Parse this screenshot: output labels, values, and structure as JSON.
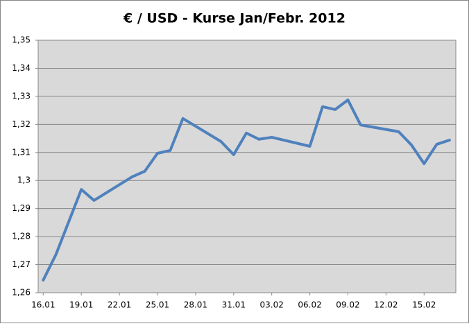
{
  "chart_data": {
    "type": "line",
    "title": "€ / USD - Kurse  Jan/Febr. 2012",
    "x": [
      0,
      1,
      3,
      4,
      7,
      8,
      9,
      10,
      11,
      14,
      15,
      16,
      17,
      18,
      21,
      22,
      23,
      24,
      25,
      28,
      29,
      30,
      31,
      32
    ],
    "series": [
      {
        "color": "#4f81bd",
        "values": [
          1.2645,
          1.2736,
          1.2968,
          1.2929,
          1.3013,
          1.3033,
          1.3097,
          1.3107,
          1.3221,
          1.3139,
          1.3092,
          1.3169,
          1.3147,
          1.3154,
          1.3122,
          1.3263,
          1.3253,
          1.3287,
          1.3198,
          1.3174,
          1.3127,
          1.306,
          1.3129,
          1.3144
        ]
      }
    ],
    "xlim": [
      -0.4,
      32.5
    ],
    "xticks": [
      {
        "value": 0,
        "label": "16.01"
      },
      {
        "value": 3,
        "label": "19.01"
      },
      {
        "value": 6,
        "label": "22.01"
      },
      {
        "value": 9,
        "label": "25.01"
      },
      {
        "value": 12,
        "label": "28.01"
      },
      {
        "value": 15,
        "label": "31.01"
      },
      {
        "value": 18,
        "label": "03.02"
      },
      {
        "value": 21,
        "label": "06.02"
      },
      {
        "value": 24,
        "label": "09.02"
      },
      {
        "value": 27,
        "label": "12.02"
      },
      {
        "value": 30,
        "label": "15.02"
      }
    ],
    "ylim": [
      1.26,
      1.35
    ],
    "yticks": [
      {
        "value": 1.26,
        "label": "1,26"
      },
      {
        "value": 1.27,
        "label": "1,27"
      },
      {
        "value": 1.28,
        "label": "1,28"
      },
      {
        "value": 1.29,
        "label": "1,29"
      },
      {
        "value": 1.3,
        "label": "1,3"
      },
      {
        "value": 1.31,
        "label": "1,31"
      },
      {
        "value": 1.32,
        "label": "1,32"
      },
      {
        "value": 1.33,
        "label": "1,33"
      },
      {
        "value": 1.34,
        "label": "1,34"
      },
      {
        "value": 1.35,
        "label": "1,35"
      }
    ],
    "grid": true
  }
}
